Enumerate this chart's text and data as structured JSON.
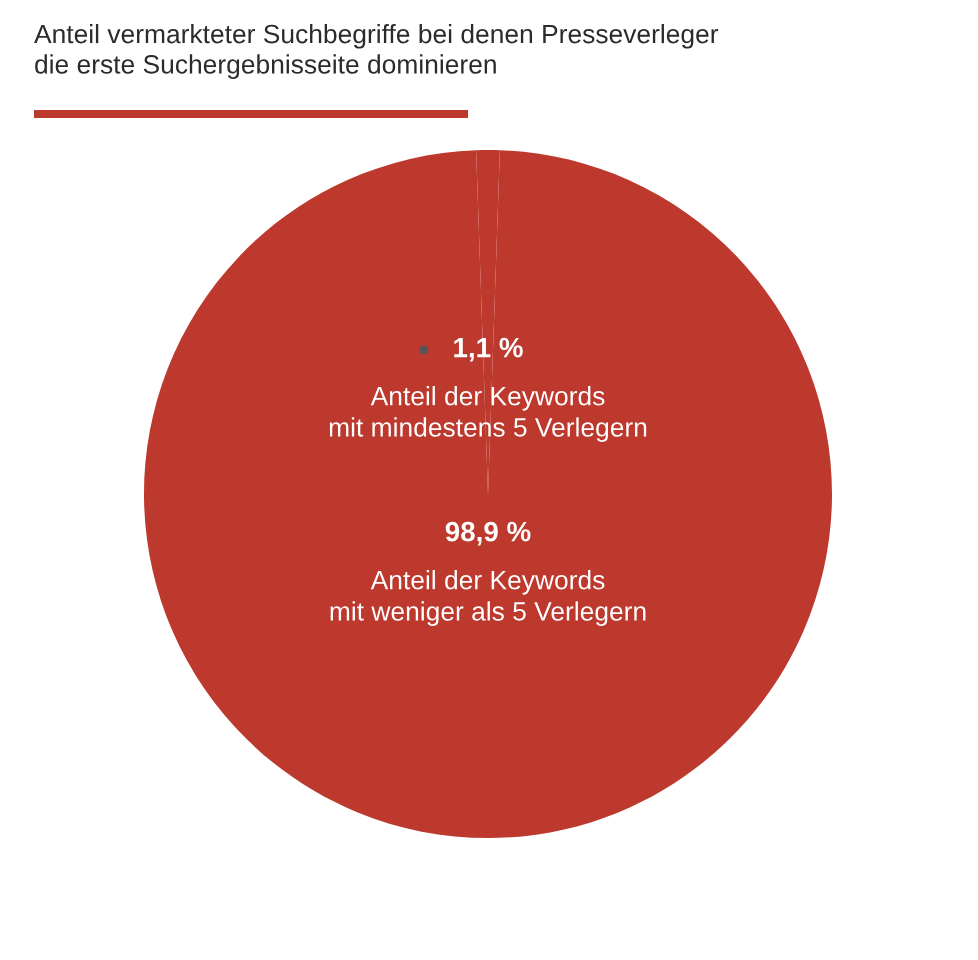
{
  "chart_data": {
    "type": "pie",
    "title": "Anteil vermarkteter Suchbegriffe bei denen Presseverleger\ndie erste Suchergebnisseite dominieren",
    "categories": [
      "Anteil der Keywords\nmit mindestens 5 Verlegern",
      "Anteil der Keywords\nmit weniger als 5 Verlegern"
    ],
    "values": [
      1.1,
      98.9
    ],
    "value_labels": [
      "1,1 %",
      "98,9 %"
    ],
    "colors": [
      "#bd392e",
      "#bd392e"
    ]
  }
}
